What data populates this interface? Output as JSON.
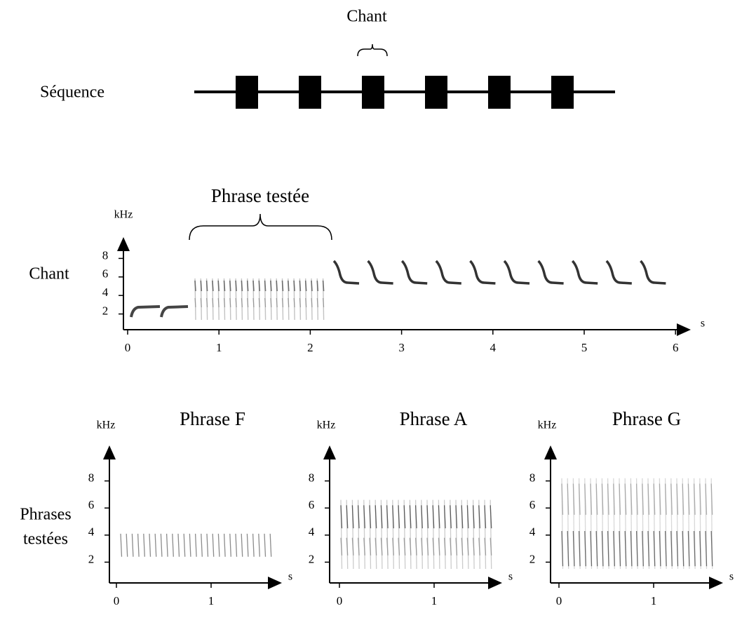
{
  "sequence": {
    "label": "Séquence",
    "unit_label": "Chant"
  },
  "song": {
    "label": "Chant",
    "highlight": "Phrase testée",
    "y_unit": "kHz",
    "x_unit": "s",
    "yticks": [
      2,
      4,
      6,
      8
    ],
    "xticks": [
      0,
      1,
      2,
      3,
      4,
      5,
      6
    ]
  },
  "phrases": {
    "label_line1": "Phrases",
    "label_line2": "testées",
    "panels": [
      {
        "title": "Phrase F",
        "y_unit": "kHz",
        "x_unit": "s",
        "yticks": [
          2,
          4,
          6,
          8
        ],
        "xticks": [
          0,
          1
        ]
      },
      {
        "title": "Phrase A",
        "y_unit": "kHz",
        "x_unit": "s",
        "yticks": [
          2,
          4,
          6,
          8
        ],
        "xticks": [
          0,
          1
        ]
      },
      {
        "title": "Phrase G",
        "y_unit": "kHz",
        "x_unit": "s",
        "yticks": [
          2,
          4,
          6,
          8
        ],
        "xticks": [
          0,
          1
        ]
      }
    ]
  }
}
